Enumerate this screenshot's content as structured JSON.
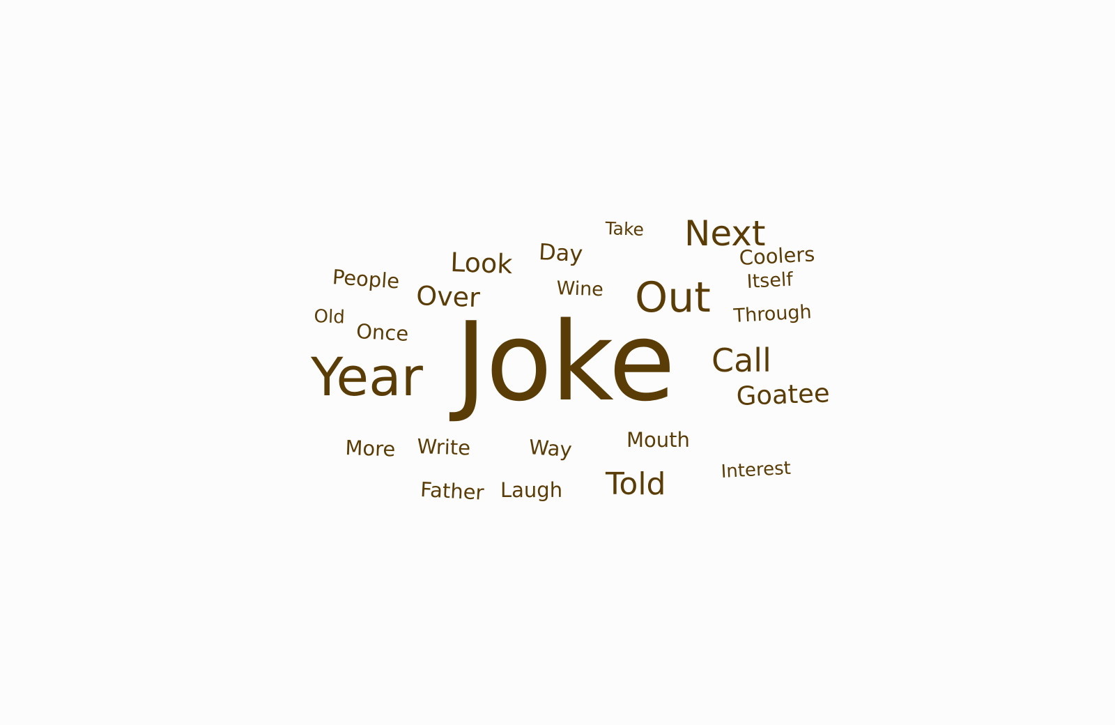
{
  "colors": {
    "background": "#fdfcfd",
    "word": "#5a3d06"
  },
  "word_cloud": {
    "words": [
      {
        "key": "joke",
        "text": "Joke"
      },
      {
        "key": "year",
        "text": "Year"
      },
      {
        "key": "out",
        "text": "Out"
      },
      {
        "key": "next",
        "text": "Next"
      },
      {
        "key": "call",
        "text": "Call"
      },
      {
        "key": "told",
        "text": "Told"
      },
      {
        "key": "look",
        "text": "Look"
      },
      {
        "key": "over",
        "text": "Over"
      },
      {
        "key": "goatee",
        "text": "Goatee"
      },
      {
        "key": "day",
        "text": "Day"
      },
      {
        "key": "people",
        "text": "People"
      },
      {
        "key": "coolers",
        "text": "Coolers"
      },
      {
        "key": "once",
        "text": "Once"
      },
      {
        "key": "write",
        "text": "Write"
      },
      {
        "key": "way",
        "text": "Way"
      },
      {
        "key": "more",
        "text": "More"
      },
      {
        "key": "father",
        "text": "Father"
      },
      {
        "key": "laugh",
        "text": "Laugh"
      },
      {
        "key": "mouth",
        "text": "Mouth"
      },
      {
        "key": "through",
        "text": "Through"
      },
      {
        "key": "wine",
        "text": "Wine"
      },
      {
        "key": "itself",
        "text": "Itself"
      },
      {
        "key": "interest",
        "text": "Interest"
      },
      {
        "key": "old",
        "text": "Old"
      },
      {
        "key": "take",
        "text": "Take"
      }
    ]
  }
}
